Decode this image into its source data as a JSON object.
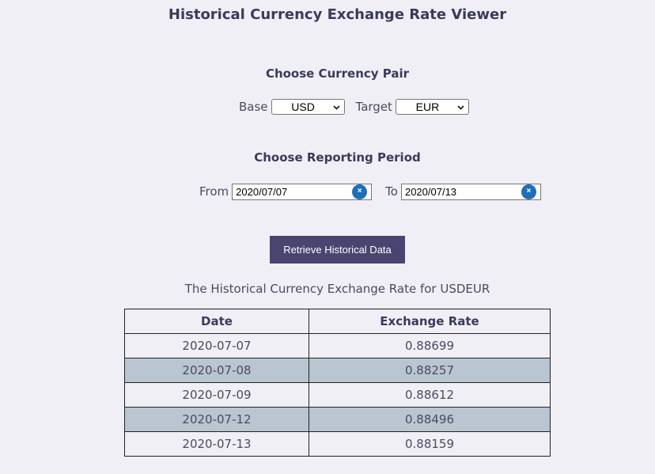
{
  "app": {
    "title": "Historical Currency Exchange Rate Viewer"
  },
  "currency_pair": {
    "heading": "Choose Currency Pair",
    "base_label": "Base",
    "base_value": "USD",
    "target_label": "Target",
    "target_value": "EUR"
  },
  "reporting_period": {
    "heading": "Choose Reporting Period",
    "from_label": "From",
    "from_value": "2020/07/07",
    "to_label": "To",
    "to_value": "2020/07/13",
    "clear_icon": "×"
  },
  "retrieve_button": {
    "label": "Retrieve Historical Data"
  },
  "results": {
    "caption": "The Historical Currency Exchange Rate for USDEUR",
    "columns": [
      "Date",
      "Exchange Rate"
    ],
    "rows": [
      {
        "date": "2020-07-07",
        "rate": "0.88699"
      },
      {
        "date": "2020-07-08",
        "rate": "0.88257"
      },
      {
        "date": "2020-07-09",
        "rate": "0.88612"
      },
      {
        "date": "2020-07-12",
        "rate": "0.88496"
      },
      {
        "date": "2020-07-13",
        "rate": "0.88159"
      }
    ]
  },
  "colors": {
    "background": "#f0eff5",
    "button": "#4a4470",
    "clear_icon": "#1e6fb5",
    "row_highlight": "#b9c6d1"
  }
}
